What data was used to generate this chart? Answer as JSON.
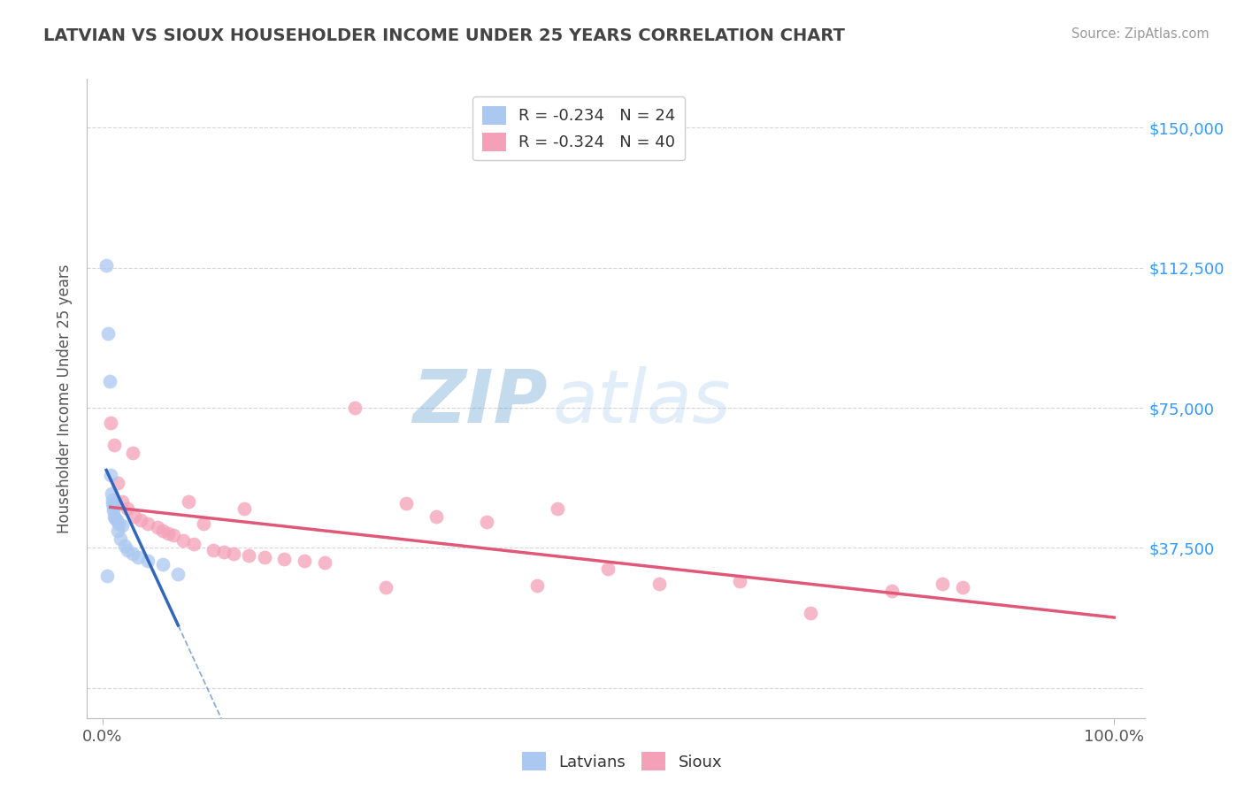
{
  "title": "LATVIAN VS SIOUX HOUSEHOLDER INCOME UNDER 25 YEARS CORRELATION CHART",
  "source_text": "Source: ZipAtlas.com",
  "ylabel": "Householder Income Under 25 years",
  "legend_latvian_R": "-0.234",
  "legend_latvian_N": "24",
  "legend_sioux_R": "-0.324",
  "legend_sioux_N": "40",
  "latvian_color": "#aac8f0",
  "sioux_color": "#f4a0b8",
  "latvian_line_color": "#3366bb",
  "sioux_line_color": "#e05878",
  "background_color": "#ffffff",
  "grid_color": "#cccccc",
  "title_color": "#444444",
  "axis_label_color": "#555555",
  "ytick_label_color": "#3399ff",
  "xtick_label_color": "#555555",
  "source_color": "#999999",
  "latvian_x": [
    0.4,
    0.5,
    0.6,
    0.7,
    0.8,
    0.9,
    1.0,
    1.0,
    1.1,
    1.1,
    1.2,
    1.3,
    1.4,
    1.5,
    1.6,
    1.8,
    2.0,
    2.2,
    2.5,
    3.0,
    3.5,
    4.5,
    6.0,
    7.5
  ],
  "latvian_y": [
    113000,
    30000,
    95000,
    82000,
    57000,
    52000,
    50500,
    49500,
    48500,
    47500,
    46000,
    45500,
    45000,
    42000,
    44000,
    40000,
    43500,
    38000,
    37000,
    36000,
    35000,
    34000,
    33000,
    30500
  ],
  "sioux_x": [
    0.8,
    1.2,
    1.5,
    2.0,
    2.5,
    3.0,
    3.2,
    3.8,
    4.5,
    5.5,
    6.0,
    6.5,
    7.0,
    8.0,
    8.5,
    9.0,
    10.0,
    11.0,
    12.0,
    13.0,
    14.0,
    14.5,
    16.0,
    18.0,
    20.0,
    22.0,
    25.0,
    28.0,
    30.0,
    33.0,
    38.0,
    43.0,
    45.0,
    50.0,
    55.0,
    63.0,
    70.0,
    78.0,
    83.0,
    85.0
  ],
  "sioux_y": [
    71000,
    65000,
    55000,
    50000,
    48000,
    63000,
    46000,
    45000,
    44000,
    43000,
    42000,
    41500,
    41000,
    39500,
    50000,
    38500,
    44000,
    37000,
    36500,
    36000,
    48000,
    35500,
    35000,
    34500,
    34000,
    33500,
    75000,
    27000,
    49500,
    46000,
    44500,
    27500,
    48000,
    32000,
    28000,
    28500,
    20000,
    26000,
    28000,
    27000
  ],
  "xlim_min": -1.5,
  "xlim_max": 103,
  "ylim_min": -8000,
  "ylim_max": 163000,
  "yticks": [
    0,
    37500,
    75000,
    112500,
    150000
  ],
  "ytick_labels": [
    "",
    "$37,500",
    "$75,000",
    "$112,500",
    "$150,000"
  ],
  "xtick_positions": [
    0,
    100
  ],
  "xtick_labels": [
    "0.0%",
    "100.0%"
  ],
  "watermark_zip_color": "#5599cc",
  "watermark_atlas_color": "#aaccee",
  "marker_size": 130
}
